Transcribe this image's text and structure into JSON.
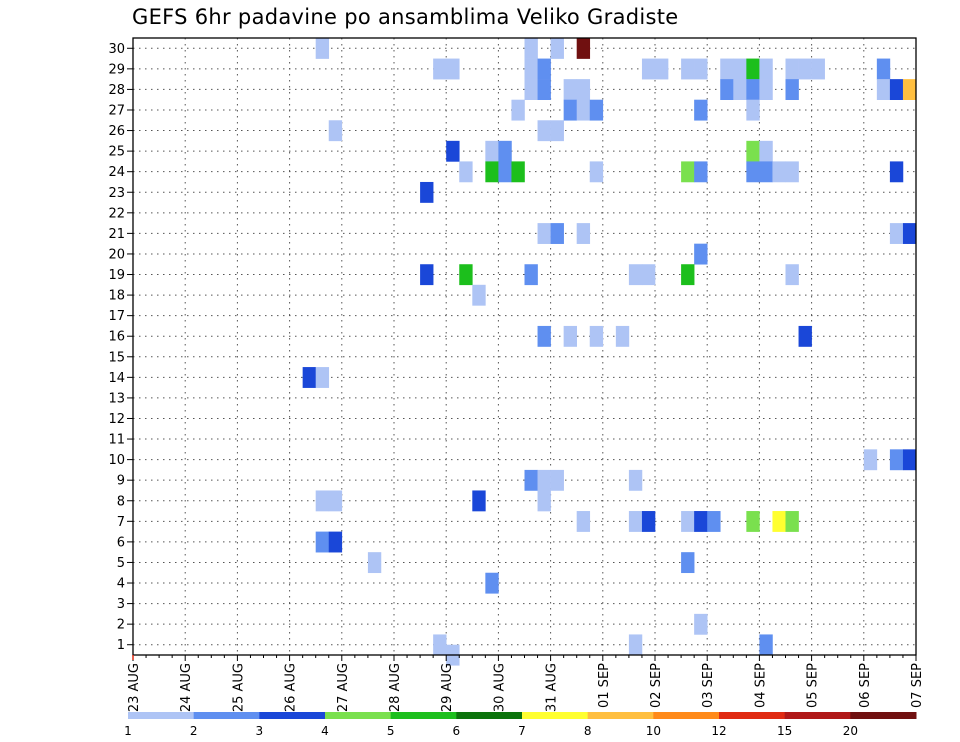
{
  "chart_data": {
    "type": "heatmap",
    "title": "GEFS 6hr padavine po ansamblima Veliko Gradiste",
    "x_labels": [
      "23 AUG",
      "24 AUG",
      "25 AUG",
      "26 AUG",
      "27 AUG",
      "28 AUG",
      "29 AUG",
      "30 AUG",
      "31 AUG",
      "01 SEP",
      "02 SEP",
      "03 SEP",
      "04 SEP",
      "05 SEP",
      "06 SEP",
      "07 SEP"
    ],
    "y_labels": [
      "1",
      "2",
      "3",
      "4",
      "5",
      "6",
      "7",
      "8",
      "9",
      "10",
      "11",
      "12",
      "13",
      "14",
      "15",
      "16",
      "17",
      "18",
      "19",
      "20",
      "21",
      "22",
      "23",
      "24",
      "25",
      "26",
      "27",
      "28",
      "29",
      "30"
    ],
    "xlim": [
      0,
      60
    ],
    "ylim": [
      0.5,
      30.5
    ],
    "grid": true,
    "colorbar": {
      "labels": [
        "1",
        "2",
        "3",
        "4",
        "5",
        "6",
        "7",
        "8",
        "10",
        "12",
        "15",
        "20"
      ],
      "colors": [
        "#aec4f5",
        "#5f8ff0",
        "#1a47d8",
        "#7ae04e",
        "#1cbf1c",
        "#0b730b",
        "#ffff30",
        "#ffbf40",
        "#ff8a1a",
        "#e02a12",
        "#b01818",
        "#701010"
      ]
    },
    "cells": [
      [
        14.5,
        30,
        1
      ],
      [
        30.5,
        30,
        1
      ],
      [
        32.5,
        30,
        1
      ],
      [
        34.5,
        30,
        12
      ],
      [
        23.5,
        29,
        1
      ],
      [
        24.5,
        29,
        1
      ],
      [
        30.5,
        29,
        1
      ],
      [
        31.5,
        29,
        2
      ],
      [
        39.5,
        29,
        1
      ],
      [
        40.5,
        29,
        1
      ],
      [
        42.5,
        29,
        1
      ],
      [
        43.5,
        29,
        1
      ],
      [
        45.5,
        29,
        1
      ],
      [
        46.5,
        29,
        1
      ],
      [
        47.5,
        29,
        5
      ],
      [
        48.5,
        29,
        1
      ],
      [
        50.5,
        29,
        1
      ],
      [
        51.5,
        29,
        1
      ],
      [
        52.5,
        29,
        1
      ],
      [
        57.5,
        29,
        2
      ],
      [
        30.5,
        28,
        1
      ],
      [
        31.5,
        28,
        2
      ],
      [
        33.5,
        28,
        1
      ],
      [
        34.5,
        28,
        1
      ],
      [
        45.5,
        28,
        2
      ],
      [
        46.5,
        28,
        1
      ],
      [
        47.5,
        28,
        2
      ],
      [
        48.5,
        28,
        1
      ],
      [
        50.5,
        28,
        2
      ],
      [
        57.5,
        28,
        1
      ],
      [
        58.5,
        28,
        3
      ],
      [
        59.5,
        28,
        8
      ],
      [
        29.5,
        27,
        1
      ],
      [
        33.5,
        27,
        2
      ],
      [
        34.5,
        27,
        1
      ],
      [
        35.5,
        27,
        2
      ],
      [
        43.5,
        27,
        2
      ],
      [
        47.5,
        27,
        1
      ],
      [
        15.5,
        26,
        1
      ],
      [
        31.5,
        26,
        1
      ],
      [
        32.5,
        26,
        1
      ],
      [
        24.5,
        25,
        3
      ],
      [
        27.5,
        25,
        1
      ],
      [
        28.5,
        25,
        2
      ],
      [
        47.5,
        25,
        4
      ],
      [
        48.5,
        25,
        1
      ],
      [
        25.5,
        24,
        1
      ],
      [
        27.5,
        24,
        5
      ],
      [
        28.5,
        24,
        2
      ],
      [
        29.5,
        24,
        5
      ],
      [
        35.5,
        24,
        1
      ],
      [
        42.5,
        24,
        4
      ],
      [
        43.5,
        24,
        2
      ],
      [
        47.5,
        24,
        2
      ],
      [
        48.5,
        24,
        2
      ],
      [
        49.5,
        24,
        1
      ],
      [
        50.5,
        24,
        1
      ],
      [
        58.5,
        24,
        3
      ],
      [
        22.5,
        23,
        3
      ],
      [
        31.5,
        21,
        1
      ],
      [
        32.5,
        21,
        2
      ],
      [
        34.5,
        21,
        1
      ],
      [
        58.5,
        21,
        1
      ],
      [
        59.5,
        21,
        3
      ],
      [
        43.5,
        20,
        2
      ],
      [
        22.5,
        19,
        3
      ],
      [
        25.5,
        19,
        5
      ],
      [
        30.5,
        19,
        2
      ],
      [
        38.5,
        19,
        1
      ],
      [
        39.5,
        19,
        1
      ],
      [
        42.5,
        19,
        5
      ],
      [
        50.5,
        19,
        1
      ],
      [
        26.5,
        18,
        1
      ],
      [
        31.5,
        16,
        2
      ],
      [
        33.5,
        16,
        1
      ],
      [
        35.5,
        16,
        1
      ],
      [
        37.5,
        16,
        1
      ],
      [
        51.5,
        16,
        3
      ],
      [
        13.5,
        14,
        3
      ],
      [
        14.5,
        14,
        1
      ],
      [
        30.5,
        9,
        2
      ],
      [
        31.5,
        9,
        1
      ],
      [
        32.5,
        9,
        1
      ],
      [
        38.5,
        9,
        1
      ],
      [
        14.5,
        8,
        1
      ],
      [
        15.5,
        8,
        1
      ],
      [
        26.5,
        8,
        3
      ],
      [
        31.5,
        8,
        1
      ],
      [
        34.5,
        7,
        1
      ],
      [
        38.5,
        7,
        1
      ],
      [
        39.5,
        7,
        3
      ],
      [
        42.5,
        7,
        1
      ],
      [
        43.5,
        7,
        3
      ],
      [
        44.5,
        7,
        2
      ],
      [
        47.5,
        7,
        4
      ],
      [
        49.5,
        7,
        7
      ],
      [
        50.5,
        7,
        4
      ],
      [
        14.5,
        6,
        2
      ],
      [
        15.5,
        6,
        3
      ],
      [
        18.5,
        5,
        1
      ],
      [
        42.5,
        5,
        2
      ],
      [
        27.5,
        4,
        2
      ],
      [
        43.5,
        2,
        1
      ],
      [
        23.5,
        1,
        1
      ],
      [
        38.5,
        1,
        1
      ],
      [
        48.5,
        1,
        2
      ],
      [
        24.5,
        0.5,
        1
      ],
      [
        56.5,
        10,
        1
      ],
      [
        58.5,
        10,
        2
      ],
      [
        59.5,
        10,
        3
      ]
    ]
  }
}
